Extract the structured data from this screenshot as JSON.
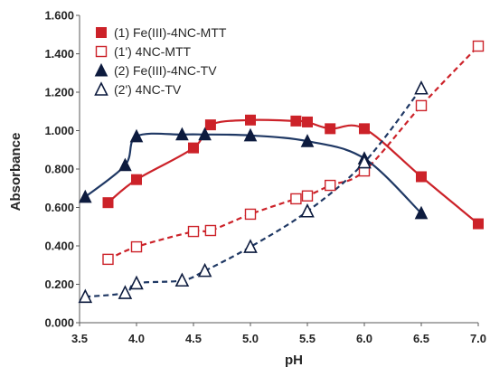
{
  "chart_data": {
    "type": "line",
    "title": "",
    "xlabel": "pH",
    "ylabel": "Absorbance",
    "xlim": [
      3.5,
      7.0
    ],
    "ylim": [
      0.0,
      1.6
    ],
    "x_ticks": [
      3.5,
      4.0,
      4.5,
      5.0,
      5.5,
      6.0,
      6.5,
      7.0
    ],
    "y_ticks": [
      0.0,
      0.2,
      0.4,
      0.6,
      0.8,
      1.0,
      1.2,
      1.4,
      1.6
    ],
    "x_tick_labels": [
      "3.5",
      "4.0",
      "4.5",
      "5.0",
      "5.5",
      "6.0",
      "6.5",
      "7.0"
    ],
    "y_tick_labels": [
      "0.000",
      "0.200",
      "0.400",
      "0.600",
      "0.800",
      "1.000",
      "1.200",
      "1.400",
      "1.600"
    ],
    "grid": false,
    "legend_position": "top-left",
    "series": [
      {
        "name": "(1) Fe(III)-4NC-MTT",
        "color": "#cc2229",
        "marker": "square-filled",
        "line": "solid",
        "points": [
          [
            3.75,
            0.625
          ],
          [
            4.0,
            0.745
          ],
          [
            4.5,
            0.91
          ],
          [
            4.65,
            1.03
          ],
          [
            5.0,
            1.055
          ],
          [
            5.4,
            1.05
          ],
          [
            5.5,
            1.045
          ],
          [
            5.7,
            1.01
          ],
          [
            6.0,
            1.01
          ],
          [
            6.5,
            0.76
          ],
          [
            7.0,
            0.515
          ]
        ]
      },
      {
        "name": "(1') 4NC-MTT",
        "color": "#cc2229",
        "marker": "square-open",
        "line": "dashed",
        "points": [
          [
            3.75,
            0.33
          ],
          [
            4.0,
            0.395
          ],
          [
            4.5,
            0.475
          ],
          [
            4.65,
            0.48
          ],
          [
            5.0,
            0.565
          ],
          [
            5.4,
            0.645
          ],
          [
            5.5,
            0.66
          ],
          [
            5.7,
            0.715
          ],
          [
            6.0,
            0.79
          ],
          [
            6.5,
            1.13
          ],
          [
            7.0,
            1.44
          ]
        ]
      },
      {
        "name": "(2) Fe(III)-4NC-TV",
        "color": "#1f3864",
        "marker": "triangle-filled",
        "line": "solid",
        "points": [
          [
            3.55,
            0.655
          ],
          [
            3.9,
            0.82
          ],
          [
            4.0,
            0.97
          ],
          [
            4.4,
            0.98
          ],
          [
            4.6,
            0.98
          ],
          [
            5.0,
            0.975
          ],
          [
            5.5,
            0.945
          ],
          [
            6.0,
            0.855
          ],
          [
            6.5,
            0.57
          ]
        ]
      },
      {
        "name": "(2') 4NC-TV",
        "color": "#1f3864",
        "marker": "triangle-open",
        "line": "dashed",
        "points": [
          [
            3.55,
            0.135
          ],
          [
            3.9,
            0.155
          ],
          [
            4.0,
            0.205
          ],
          [
            4.4,
            0.22
          ],
          [
            4.6,
            0.27
          ],
          [
            5.0,
            0.395
          ],
          [
            5.5,
            0.58
          ],
          [
            6.0,
            0.835
          ],
          [
            6.5,
            1.22
          ]
        ]
      }
    ]
  }
}
